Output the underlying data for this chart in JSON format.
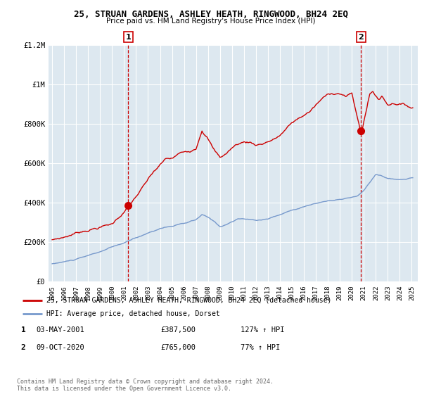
{
  "title": "25, STRUAN GARDENS, ASHLEY HEATH, RINGWOOD, BH24 2EQ",
  "subtitle": "Price paid vs. HM Land Registry's House Price Index (HPI)",
  "legend_label_red": "25, STRUAN GARDENS, ASHLEY HEATH, RINGWOOD, BH24 2EQ (detached house)",
  "legend_label_blue": "HPI: Average price, detached house, Dorset",
  "annotation1_label": "1",
  "annotation1_date": "03-MAY-2001",
  "annotation1_price": "£387,500",
  "annotation1_hpi": "127% ↑ HPI",
  "annotation2_label": "2",
  "annotation2_date": "09-OCT-2020",
  "annotation2_price": "£765,000",
  "annotation2_hpi": "77% ↑ HPI",
  "footnote": "Contains HM Land Registry data © Crown copyright and database right 2024.\nThis data is licensed under the Open Government Licence v3.0.",
  "ylim": [
    0,
    1200000
  ],
  "yticks": [
    0,
    200000,
    400000,
    600000,
    800000,
    1000000,
    1200000
  ],
  "ytick_labels": [
    "£0",
    "£200K",
    "£400K",
    "£600K",
    "£800K",
    "£1M",
    "£1.2M"
  ],
  "red_color": "#cc0000",
  "blue_color": "#7799cc",
  "dashed_color": "#cc0000",
  "background_color": "#dde8f0",
  "chart_bg": "#dde8f0",
  "sale1_x": 2001.34,
  "sale1_y": 387500,
  "sale2_x": 2020.77,
  "sale2_y": 765000,
  "xlim_left": 1994.7,
  "xlim_right": 2025.5
}
